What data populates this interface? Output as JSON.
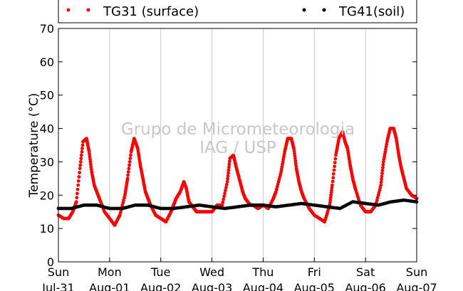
{
  "chart_data": {
    "type": "scatter",
    "title": "",
    "xlabel": "",
    "ylabel": "Temperature (°C)",
    "ylim": [
      0,
      70
    ],
    "yticks": [
      "0",
      "10",
      "20",
      "30",
      "40",
      "50",
      "60",
      "70"
    ],
    "xlim_days": [
      0,
      7
    ],
    "xticks": [
      {
        "day": "Sun",
        "date": "Jul-31"
      },
      {
        "day": "Mon",
        "date": "Aug-01"
      },
      {
        "day": "Tue",
        "date": "Aug-02"
      },
      {
        "day": "Wed",
        "date": "Aug-03"
      },
      {
        "day": "Thu",
        "date": "Aug-04"
      },
      {
        "day": "Fri",
        "date": "Aug-05"
      },
      {
        "day": "Sat",
        "date": "Aug-06"
      },
      {
        "day": "Sun",
        "date": "Aug-07"
      }
    ],
    "grid": "vertical",
    "legend_position": "top",
    "watermark": [
      "Grupo de Micrometeorologia",
      "IAG / USP"
    ],
    "series": [
      {
        "name": "TG31 (surface)",
        "color": "#ff0000",
        "x_days": [
          0,
          0.1,
          0.2,
          0.28,
          0.35,
          0.42,
          0.48,
          0.55,
          0.6,
          0.65,
          0.7,
          0.75,
          0.8,
          0.9,
          1.0,
          1.1,
          1.2,
          1.3,
          1.35,
          1.42,
          1.48,
          1.55,
          1.6,
          1.65,
          1.7,
          1.75,
          1.8,
          1.9,
          2.0,
          2.1,
          2.2,
          2.25,
          2.3,
          2.38,
          2.45,
          2.5,
          2.55,
          2.6,
          2.65,
          2.7,
          2.8,
          2.9,
          3.0,
          3.1,
          3.2,
          3.3,
          3.35,
          3.42,
          3.48,
          3.55,
          3.6,
          3.65,
          3.7,
          3.75,
          3.8,
          3.9,
          4.0,
          4.1,
          4.2,
          4.25,
          4.35,
          4.42,
          4.48,
          4.55,
          4.6,
          4.65,
          4.7,
          4.75,
          4.8,
          4.9,
          5.0,
          5.1,
          5.2,
          5.3,
          5.35,
          5.42,
          5.48,
          5.55,
          5.6,
          5.65,
          5.7,
          5.75,
          5.8,
          5.9,
          6.0,
          6.1,
          6.2,
          6.3,
          6.35,
          6.42,
          6.48,
          6.55,
          6.6,
          6.65,
          6.7,
          6.75,
          6.8,
          6.9,
          7.0
        ],
        "values": [
          14,
          13,
          13,
          15,
          18,
          28,
          36,
          37,
          33,
          27,
          23,
          21,
          19,
          15,
          13,
          11,
          14,
          20,
          25,
          33,
          37,
          34,
          29,
          25,
          21,
          19,
          17,
          14,
          13,
          12,
          15,
          17,
          19,
          21,
          24,
          22,
          18,
          17,
          16,
          15,
          15,
          15,
          15,
          17,
          17,
          24,
          31,
          32,
          28,
          24,
          21,
          19,
          18,
          17,
          17,
          16,
          17,
          16,
          19,
          21,
          27,
          33,
          37,
          37,
          34,
          28,
          24,
          21,
          19,
          16,
          14,
          13,
          12,
          17,
          23,
          32,
          37,
          39,
          36,
          34,
          29,
          25,
          22,
          17,
          15,
          15,
          17,
          23,
          30,
          36,
          40,
          40,
          37,
          32,
          28,
          25,
          22,
          20,
          19
        ]
      },
      {
        "name": "TG41(soil)",
        "color": "#000000",
        "x_days": [
          0,
          0.25,
          0.5,
          0.75,
          1.0,
          1.25,
          1.5,
          1.75,
          2.0,
          2.25,
          2.5,
          2.75,
          3.0,
          3.25,
          3.5,
          3.75,
          4.0,
          4.25,
          4.5,
          4.75,
          5.0,
          5.25,
          5.5,
          5.75,
          6.0,
          6.25,
          6.5,
          6.75,
          7.0
        ],
        "values": [
          16,
          16,
          17,
          17,
          16,
          16,
          17,
          17,
          16,
          16,
          16.5,
          17,
          16.5,
          16,
          16.5,
          17,
          17,
          16.5,
          17,
          17.5,
          17,
          16.5,
          16,
          18,
          17.5,
          17,
          18,
          18.5,
          18
        ]
      }
    ]
  }
}
